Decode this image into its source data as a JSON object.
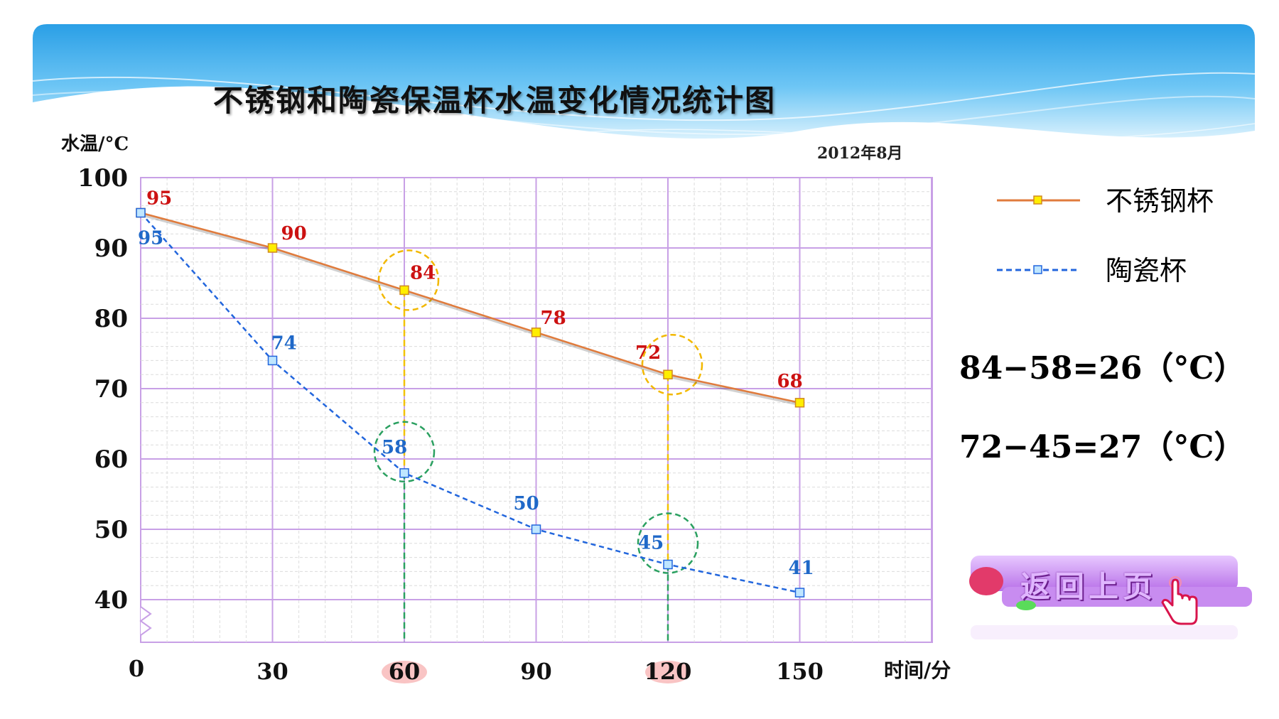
{
  "title": "不锈钢和陶瓷保温杯水温变化情况统计图",
  "date": "2012年8月",
  "chart_data": {
    "type": "line",
    "title": "不锈钢和陶瓷保温杯水温变化情况统计图",
    "xlabel": "时间/分",
    "ylabel": "水温/°C",
    "x": [
      0,
      30,
      60,
      90,
      120,
      150
    ],
    "x_tick_labels": [
      "0",
      "30",
      "60",
      "90",
      "120",
      "150"
    ],
    "y_tick_labels": [
      "40",
      "50",
      "60",
      "70",
      "80",
      "90",
      "100"
    ],
    "ylim": [
      40,
      100
    ],
    "axis_break": true,
    "grid": true,
    "legend_position": "right",
    "series": [
      {
        "name": "不锈钢杯",
        "values": [
          95,
          90,
          84,
          78,
          72,
          68
        ],
        "color": "#e07b3c",
        "marker_color": "#ffee00",
        "style": "solid"
      },
      {
        "name": "陶瓷杯",
        "values": [
          95,
          74,
          58,
          50,
          45,
          41
        ],
        "color": "#2266dd",
        "marker_color": "#bfe6ff",
        "style": "dashed"
      }
    ],
    "highlight_x": [
      60,
      120
    ]
  },
  "annotations": {
    "eq1": "84−58=26（°C）",
    "eq2": "72−45=27（°C）"
  },
  "back_button": {
    "label": "返回上页"
  },
  "colors": {
    "grid_major": "#c8a0e6",
    "grid_minor": "#dcdcdc",
    "steel_label": "#cc1111",
    "ceramic_label": "#1f68c8",
    "steel_guide": "#f2c200",
    "ceramic_guide": "#2aa060",
    "equation": "#f06060"
  }
}
